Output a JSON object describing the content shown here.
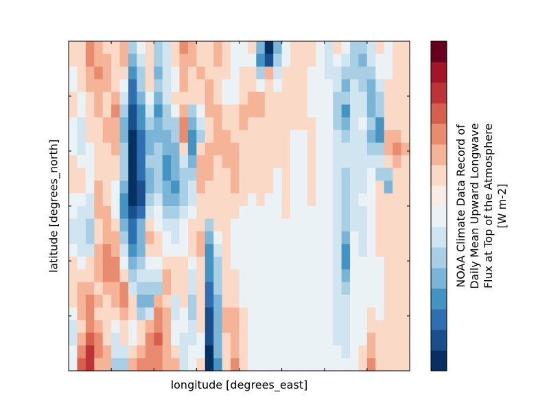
{
  "chart_data": {
    "type": "heatmap",
    "title": "",
    "xlabel": "longitude [degrees_east]",
    "ylabel": "latitude [degrees_north]",
    "colorbar_label_lines": [
      "NOAA Climate Data Record of",
      "Daily Mean Upward Longwave",
      "Flux at Top of the Atmosphere",
      "[W m-2]"
    ],
    "colormap": "RdBu_r",
    "n_levels": 16,
    "colorbar_colors": [
      "#053061",
      "#1a4f8e",
      "#2d6fb0",
      "#4393c3",
      "#7ab5d7",
      "#a9cfe5",
      "#d1e5f0",
      "#ebf2f6",
      "#f7ece6",
      "#fbd9c7",
      "#f5b498",
      "#e98b6e",
      "#d6604d",
      "#bc3338",
      "#a31529",
      "#67001f"
    ],
    "x_ticks_count": 7,
    "y_ticks_count": 5,
    "x_tick_labels_shown": false,
    "y_tick_labels_shown": false,
    "grid": false,
    "anomaly_field_rows_top_to_bottom": [
      [
        1,
        1,
        3,
        2,
        1,
        1,
        2,
        -2,
        0,
        1,
        -2,
        -1,
        1,
        3,
        2,
        1,
        1,
        2,
        1,
        0,
        0,
        1,
        -3,
        -7,
        -3,
        0,
        1,
        1,
        1,
        0,
        -1,
        1,
        0,
        -2,
        -2,
        -1,
        1,
        0,
        1,
        1
      ],
      [
        1,
        1,
        3,
        2,
        2,
        1,
        2,
        -3,
        -1,
        1,
        -2,
        -1,
        1,
        2,
        2,
        1,
        1,
        2,
        1,
        0,
        0,
        0,
        -4,
        -6,
        -2,
        0,
        1,
        1,
        1,
        0,
        -1,
        0,
        -1,
        -2,
        -3,
        -1,
        0,
        0,
        1,
        1
      ],
      [
        0,
        1,
        2,
        3,
        2,
        1,
        1,
        -4,
        -2,
        1,
        -3,
        -1,
        0,
        2,
        1,
        2,
        1,
        1,
        1,
        0,
        1,
        1,
        -2,
        2,
        -1,
        1,
        1,
        1,
        0,
        0,
        -1,
        -1,
        -2,
        -2,
        -2,
        -2,
        0,
        0,
        1,
        1
      ],
      [
        0,
        1,
        2,
        2,
        2,
        1,
        0,
        -5,
        -2,
        1,
        -2,
        -1,
        0,
        2,
        1,
        1,
        2,
        1,
        0,
        0,
        1,
        1,
        0,
        1,
        0,
        1,
        1,
        1,
        0,
        0,
        0,
        -1,
        -3,
        -1,
        -2,
        -3,
        -1,
        1,
        1,
        1
      ],
      [
        1,
        0,
        1,
        2,
        1,
        2,
        -1,
        -5,
        -3,
        0,
        -3,
        -1,
        1,
        1,
        1,
        1,
        2,
        1,
        0,
        0,
        1,
        2,
        2,
        1,
        1,
        1,
        1,
        1,
        0,
        0,
        0,
        -2,
        -2,
        -1,
        -1,
        -3,
        -2,
        1,
        1,
        1
      ],
      [
        1,
        0,
        1,
        2,
        1,
        3,
        -2,
        -6,
        -4,
        -1,
        -4,
        -2,
        0,
        2,
        -2,
        0,
        2,
        2,
        1,
        1,
        2,
        2,
        2,
        1,
        1,
        1,
        1,
        1,
        0,
        0,
        0,
        -2,
        -4,
        -1,
        -1,
        -3,
        -2,
        1,
        1,
        1
      ],
      [
        0,
        -1,
        1,
        1,
        2,
        2,
        -3,
        -6,
        -4,
        -2,
        -3,
        -2,
        -2,
        3,
        -3,
        -1,
        1,
        2,
        1,
        1,
        2,
        1,
        1,
        1,
        1,
        1,
        1,
        1,
        1,
        0,
        0,
        -2,
        -3,
        -1,
        0,
        -2,
        -4,
        1,
        1,
        1
      ],
      [
        0,
        -1,
        1,
        1,
        2,
        2,
        -3,
        -7,
        -5,
        -3,
        -3,
        -3,
        -2,
        3,
        -4,
        -2,
        1,
        2,
        2,
        1,
        1,
        1,
        1,
        1,
        1,
        1,
        0,
        0,
        1,
        0,
        0,
        -1,
        -2,
        -1,
        -1,
        -3,
        -4,
        2,
        2,
        1
      ],
      [
        0,
        -1,
        0,
        1,
        1,
        2,
        -2,
        -7,
        -5,
        -3,
        -2,
        -3,
        -3,
        1,
        -4,
        1,
        2,
        2,
        2,
        2,
        1,
        1,
        1,
        1,
        1,
        1,
        0,
        0,
        1,
        0,
        0,
        -1,
        -1,
        -1,
        -1,
        -2,
        -2,
        2,
        3,
        2
      ],
      [
        1,
        0,
        0,
        1,
        1,
        1,
        -2,
        -7,
        -5,
        -2,
        -2,
        -4,
        -3,
        -1,
        -3,
        2,
        2,
        1,
        2,
        2,
        1,
        1,
        1,
        1,
        1,
        1,
        0,
        0,
        1,
        0,
        0,
        -1,
        -1,
        -1,
        -1,
        -1,
        -1,
        1,
        2,
        1
      ],
      [
        1,
        1,
        0,
        1,
        1,
        1,
        -2,
        -8,
        -5,
        -3,
        -2,
        -4,
        -3,
        -2,
        -2,
        2,
        2,
        1,
        1,
        2,
        1,
        1,
        1,
        1,
        0,
        1,
        0,
        0,
        1,
        0,
        0,
        -1,
        -2,
        -1,
        -1,
        0,
        -2,
        -2,
        1,
        1
      ],
      [
        1,
        1,
        0,
        2,
        1,
        0,
        -3,
        -8,
        -6,
        -3,
        -2,
        -3,
        -4,
        -2,
        -1,
        2,
        1,
        1,
        1,
        2,
        1,
        1,
        1,
        1,
        0,
        1,
        0,
        0,
        1,
        0,
        0,
        -1,
        -2,
        -1,
        -1,
        0,
        1,
        -3,
        1,
        1
      ],
      [
        0,
        0,
        -1,
        2,
        1,
        0,
        -4,
        -7,
        -6,
        -2,
        -1,
        -3,
        -3,
        -2,
        -1,
        1,
        1,
        1,
        1,
        1,
        1,
        0,
        1,
        0,
        0,
        1,
        0,
        0,
        1,
        0,
        0,
        -1,
        -2,
        -1,
        0,
        0,
        1,
        1,
        1,
        1
      ],
      [
        0,
        -1,
        -1,
        2,
        2,
        0,
        -4,
        -6,
        -5,
        -1,
        0,
        -2,
        -2,
        -1,
        0,
        1,
        1,
        1,
        1,
        1,
        0,
        0,
        0,
        0,
        0,
        1,
        0,
        0,
        0,
        0,
        0,
        -1,
        -2,
        -1,
        -1,
        0,
        1,
        1,
        1,
        1
      ],
      [
        -1,
        -1,
        -2,
        1,
        2,
        1,
        -3,
        -5,
        -3,
        1,
        0,
        -1,
        -1,
        0,
        1,
        1,
        -2,
        1,
        1,
        0,
        0,
        0,
        0,
        0,
        0,
        0,
        0,
        0,
        0,
        0,
        0,
        -1,
        -2,
        -1,
        -1,
        0,
        1,
        1,
        1,
        1
      ],
      [
        -1,
        -1,
        -2,
        1,
        2,
        2,
        -2,
        -5,
        -3,
        2,
        1,
        0,
        -1,
        0,
        1,
        2,
        -3,
        0,
        1,
        0,
        0,
        0,
        0,
        0,
        0,
        0,
        0,
        0,
        0,
        0,
        0,
        -1,
        -3,
        0,
        -1,
        0,
        1,
        1,
        1,
        1
      ],
      [
        0,
        -1,
        -1,
        2,
        3,
        2,
        -1,
        -4,
        -3,
        1,
        1,
        0,
        0,
        0,
        1,
        2,
        -4,
        -1,
        1,
        0,
        0,
        0,
        0,
        0,
        0,
        0,
        0,
        0,
        0,
        0,
        0,
        -1,
        -4,
        0,
        -1,
        0,
        1,
        1,
        1,
        1
      ],
      [
        1,
        0,
        1,
        2,
        3,
        3,
        0,
        -3,
        -2,
        0,
        0,
        1,
        1,
        1,
        0,
        1,
        -4,
        -2,
        1,
        0,
        0,
        0,
        0,
        0,
        0,
        0,
        0,
        0,
        0,
        0,
        0,
        -1,
        -4,
        0,
        0,
        0,
        0,
        1,
        1,
        1
      ],
      [
        1,
        1,
        1,
        2,
        3,
        3,
        1,
        -2,
        -1,
        -1,
        -1,
        2,
        1,
        1,
        -1,
        1,
        -4,
        -2,
        1,
        1,
        0,
        0,
        0,
        0,
        0,
        0,
        0,
        0,
        0,
        0,
        0,
        -1,
        -3,
        0,
        0,
        0,
        0,
        1,
        1,
        1
      ],
      [
        1,
        2,
        2,
        1,
        2,
        2,
        3,
        -1,
        -2,
        -2,
        -2,
        2,
        1,
        1,
        -1,
        1,
        -5,
        -2,
        1,
        1,
        0,
        0,
        0,
        0,
        0,
        0,
        0,
        0,
        0,
        0,
        0,
        -1,
        -2,
        0,
        0,
        0,
        0,
        1,
        1,
        1
      ],
      [
        1,
        2,
        3,
        2,
        1,
        2,
        3,
        1,
        -3,
        -3,
        2,
        1,
        -1,
        1,
        -2,
        1,
        -5,
        -3,
        1,
        1,
        0,
        0,
        0,
        0,
        0,
        0,
        0,
        0,
        0,
        0,
        0,
        -1,
        -1,
        0,
        0,
        0,
        0,
        1,
        1,
        1
      ],
      [
        0,
        2,
        3,
        1,
        1,
        1,
        2,
        1,
        -2,
        -1,
        3,
        2,
        -1,
        0,
        -2,
        1,
        -6,
        -3,
        2,
        2,
        1,
        0,
        0,
        0,
        0,
        0,
        0,
        0,
        0,
        0,
        0,
        -1,
        -1,
        0,
        0,
        1,
        0,
        1,
        1,
        1
      ],
      [
        -1,
        1,
        3,
        2,
        1,
        0,
        1,
        0,
        1,
        2,
        3,
        2,
        0,
        0,
        -1,
        1,
        -6,
        -3,
        2,
        2,
        1,
        0,
        0,
        0,
        0,
        0,
        0,
        0,
        0,
        0,
        0,
        -1,
        -1,
        0,
        0,
        1,
        1,
        1,
        1,
        1
      ],
      [
        -1,
        2,
        4,
        3,
        1,
        -1,
        1,
        0,
        1,
        3,
        4,
        2,
        0,
        -1,
        -1,
        0,
        -6,
        -3,
        1,
        2,
        1,
        0,
        0,
        0,
        0,
        0,
        0,
        0,
        0,
        0,
        0,
        -1,
        -1,
        0,
        0,
        2,
        1,
        1,
        1,
        1
      ],
      [
        0,
        3,
        5,
        3,
        2,
        -1,
        -1,
        1,
        2,
        3,
        3,
        2,
        1,
        -1,
        0,
        0,
        -7,
        -3,
        1,
        2,
        1,
        0,
        0,
        0,
        0,
        0,
        0,
        0,
        0,
        0,
        0,
        0,
        -1,
        0,
        1,
        2,
        1,
        1,
        1,
        1
      ],
      [
        0,
        4,
        5,
        2,
        2,
        -2,
        -2,
        2,
        3,
        3,
        3,
        2,
        2,
        -1,
        0,
        1,
        -7,
        -4,
        1,
        3,
        1,
        0,
        0,
        0,
        0,
        0,
        0,
        0,
        0,
        0,
        0,
        0,
        0,
        0,
        1,
        3,
        1,
        1,
        1,
        1
      ]
    ]
  }
}
